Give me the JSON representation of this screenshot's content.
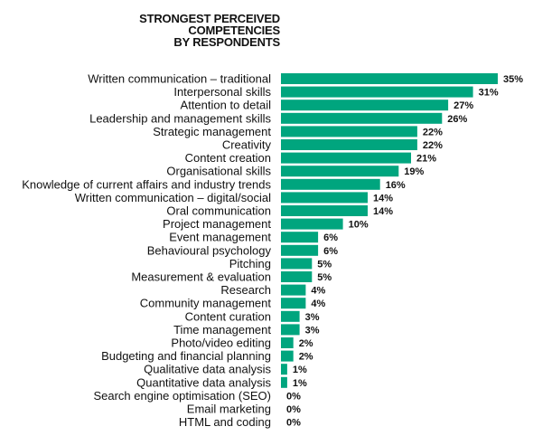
{
  "chart_data": {
    "type": "bar",
    "orientation": "horizontal",
    "title_lines": [
      "STRONGEST PERCEIVED",
      "COMPETENCIES",
      "BY RESPONDENTS"
    ],
    "unit_suffix": "%",
    "bar_color": "#00a57e",
    "xlim": [
      0,
      35
    ],
    "categories": [
      "Written communication – traditional",
      "Interpersonal skills",
      "Attention to detail",
      "Leadership and management skills",
      "Strategic management",
      "Creativity",
      "Content creation",
      "Organisational skills",
      "Knowledge of current affairs and industry trends",
      "Written communication – digital/social",
      "Oral communication",
      "Project management",
      "Event management",
      "Behavioural psychology",
      "Pitching",
      "Measurement & evaluation",
      "Research",
      "Community management",
      "Content curation",
      "Time management",
      "Photo/video editing",
      "Budgeting and financial planning",
      "Qualitative data analysis",
      "Quantitative data analysis",
      "Search engine optimisation (SEO)",
      "Email marketing",
      "HTML and coding"
    ],
    "values": [
      35,
      31,
      27,
      26,
      22,
      22,
      21,
      19,
      16,
      14,
      14,
      10,
      6,
      6,
      5,
      5,
      4,
      4,
      3,
      3,
      2,
      2,
      1,
      1,
      0,
      0,
      0
    ],
    "value_labels": [
      "35%",
      "31%",
      "27%",
      "26%",
      "22%",
      "22%",
      "21%",
      "19%",
      "16%",
      "14%",
      "14%",
      "10%",
      "6%",
      "6%",
      "5%",
      "5%",
      "4%",
      "4%",
      "3%",
      "3%",
      "2%",
      "2%",
      "1%",
      "1%",
      "0%",
      "0%",
      "0%"
    ]
  }
}
